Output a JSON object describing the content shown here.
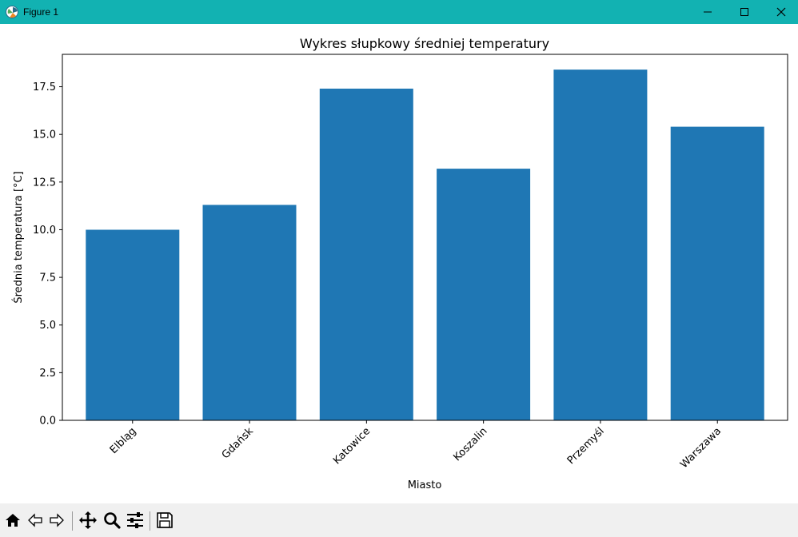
{
  "window": {
    "title": "Figure 1",
    "icon": "matplotlib-logo-icon",
    "controls": [
      "minimize-icon",
      "maximize-icon",
      "close-icon"
    ],
    "titlebar_color": "#12b2b2"
  },
  "toolbar": {
    "buttons": [
      "home-icon",
      "back-icon",
      "forward-icon",
      "pan-icon",
      "zoom-icon",
      "configure-subplots-icon",
      "save-icon"
    ]
  },
  "chart_data": {
    "type": "bar",
    "title": "Wykres słupkowy średniej temperatury",
    "xlabel": "Miasto",
    "ylabel": "Średnia temperatura [°C]",
    "categories": [
      "Elbląg",
      "Gdańsk",
      "Katowice",
      "Koszalin",
      "Przemyśl",
      "Warszawa"
    ],
    "values": [
      10.0,
      11.3,
      17.4,
      13.2,
      18.4,
      15.4
    ],
    "ylim": [
      0,
      19.2
    ],
    "yticks": [
      "0.0",
      "2.5",
      "5.0",
      "7.5",
      "10.0",
      "12.5",
      "15.0",
      "17.5"
    ],
    "bar_color": "#1f77b4",
    "grid": false,
    "xtick_rotation": 45
  }
}
